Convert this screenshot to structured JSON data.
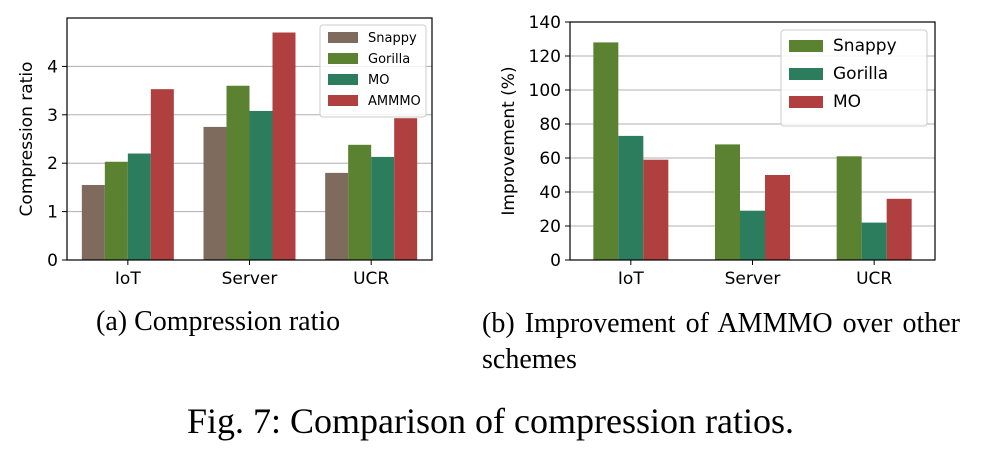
{
  "colors": {
    "snappy_a": "#7f6b5e",
    "gorilla_a": "#5a8231",
    "mo_a": "#2b7d5d",
    "ammmo_a": "#b0403f",
    "snappy_b": "#5a8231",
    "gorilla_b": "#2b7d5d",
    "mo_b": "#b0403f",
    "grid": "#b0b0b0"
  },
  "chart_data": [
    {
      "type": "bar",
      "title": "",
      "xlabel": "",
      "ylabel": "Compression ratio",
      "categories": [
        "IoT",
        "Server",
        "UCR"
      ],
      "yticks": [
        "0",
        "1",
        "2",
        "3",
        "4"
      ],
      "ylim": [
        0,
        5
      ],
      "grid": true,
      "legend_position": "top-right",
      "series": [
        {
          "name": "Snappy",
          "values": [
            1.55,
            2.75,
            1.8
          ]
        },
        {
          "name": "Gorilla",
          "values": [
            2.03,
            3.6,
            2.38
          ]
        },
        {
          "name": "MO",
          "values": [
            2.2,
            3.08,
            2.13
          ]
        },
        {
          "name": "AMMMO",
          "values": [
            3.53,
            4.7,
            2.93
          ]
        }
      ]
    },
    {
      "type": "bar",
      "title": "",
      "xlabel": "",
      "ylabel": "Improvement (%)",
      "categories": [
        "IoT",
        "Server",
        "UCR"
      ],
      "yticks": [
        "0",
        "20",
        "40",
        "60",
        "80",
        "100",
        "120",
        "140"
      ],
      "ylim": [
        0,
        140
      ],
      "grid": true,
      "legend_position": "top-right",
      "series": [
        {
          "name": "Snappy",
          "values": [
            128,
            68,
            61
          ]
        },
        {
          "name": "Gorilla",
          "values": [
            73,
            29,
            22
          ]
        },
        {
          "name": "MO",
          "values": [
            59,
            50,
            36
          ]
        }
      ]
    }
  ],
  "captions": {
    "a": "(a) Compression ratio",
    "b": "(b) Improvement of AMMMO over other schemes",
    "figure": "Fig. 7: Comparison of compression ratios."
  }
}
